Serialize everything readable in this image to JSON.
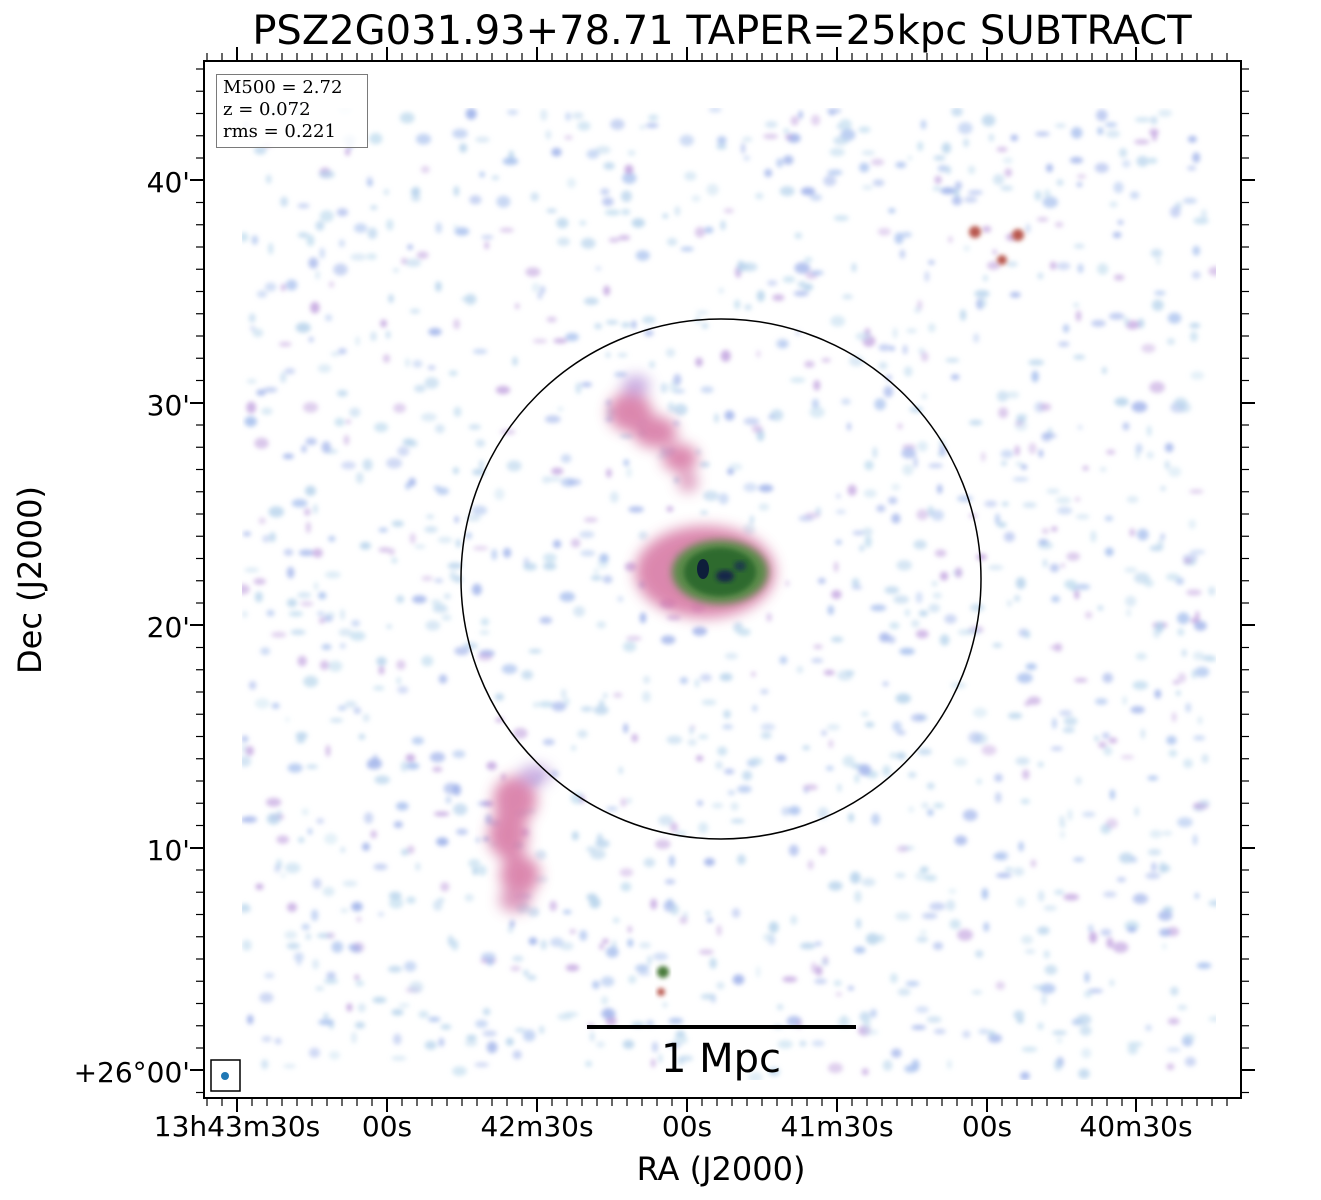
{
  "title": "PSZ2G031.93+78.71 TAPER=25kpc SUBTRACT",
  "info": {
    "m500": "M500 = 2.72",
    "z": "z = 0.072",
    "rms": "rms = 0.221"
  },
  "axes": {
    "xlabel": "RA (J2000)",
    "ylabel": "Dec (J2000)",
    "x_ticks": [
      "13h43m30s",
      "00s",
      "42m30s",
      "00s",
      "41m30s",
      "00s",
      "40m30s"
    ],
    "y_ticks": [
      "40'",
      "30'",
      "20'",
      "10'",
      "+26°00'"
    ]
  },
  "scalebar": {
    "label": "1 Mpc"
  },
  "colors": {
    "noise_light": "#b8d4ec",
    "noise_blue": "#9fb2ea",
    "emission_pink": "#d97aa8",
    "emission_core_green": "#2e6b2e",
    "emission_core_dark": "#0e1e3a",
    "beam": "#1f77b4"
  }
}
